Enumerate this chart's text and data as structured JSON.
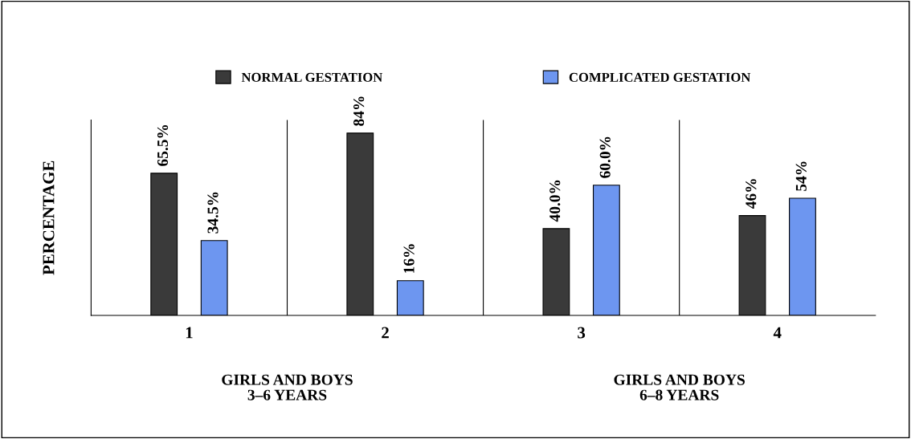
{
  "chart_data": {
    "type": "bar",
    "ylabel": "PERCENTAGE",
    "categories": [
      "1",
      "2",
      "3",
      "4"
    ],
    "series": [
      {
        "name": "NORMAL GESTATION",
        "color": "#3a3a3a",
        "values": [
          65.5,
          84,
          40.0,
          46
        ],
        "value_labels": [
          "65.5%",
          "84%",
          "40.0%",
          "46%"
        ]
      },
      {
        "name": "COMPLICATED GESTATION",
        "color": "#6d96f0",
        "values": [
          34.5,
          16,
          60.0,
          54
        ],
        "value_labels": [
          "34.5%",
          "16%",
          "60.0%",
          "54%"
        ]
      }
    ],
    "ylim": [
      0,
      90
    ],
    "tick_labels": "x",
    "legend": "top",
    "grid": false,
    "annotations": [
      "GIRLS AND BOYS\n3–6 YEARS",
      "GIRLS AND BOYS\n6–8 YEARS"
    ]
  }
}
